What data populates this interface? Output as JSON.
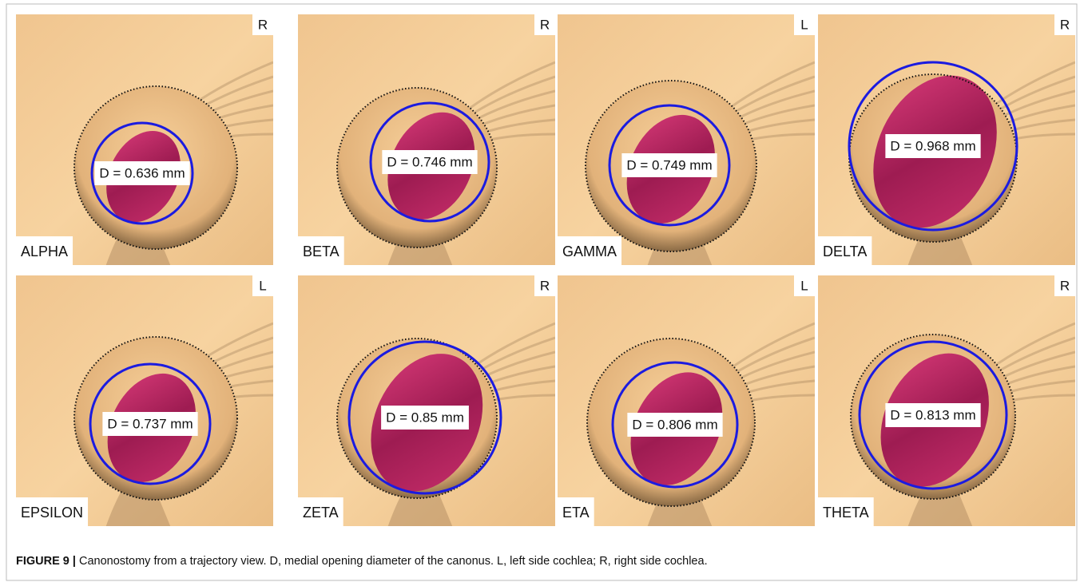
{
  "figure": {
    "panels": [
      {
        "name": "ALPHA",
        "side": "R",
        "measure": "D = 0.636 mm"
      },
      {
        "name": "BETA",
        "side": "R",
        "measure": "D = 0.746 mm"
      },
      {
        "name": "GAMMA",
        "side": "L",
        "measure": "D = 0.749 mm"
      },
      {
        "name": "DELTA",
        "side": "R",
        "measure": "D = 0.968 mm"
      },
      {
        "name": "EPSILON",
        "side": "L",
        "measure": "D = 0.737 mm"
      },
      {
        "name": "ZETA",
        "side": "R",
        "measure": "D = 0.85 mm"
      },
      {
        "name": "ETA",
        "side": "L",
        "measure": "D = 0.806 mm"
      },
      {
        "name": "THETA",
        "side": "R",
        "measure": "D = 0.813 mm"
      }
    ],
    "caption": {
      "label": "FIGURE 9 |",
      "text": "Canonostomy from a trajectory view. D, medial opening diameter of the canonus. L, left side cochlea; R, right side cochlea."
    }
  }
}
